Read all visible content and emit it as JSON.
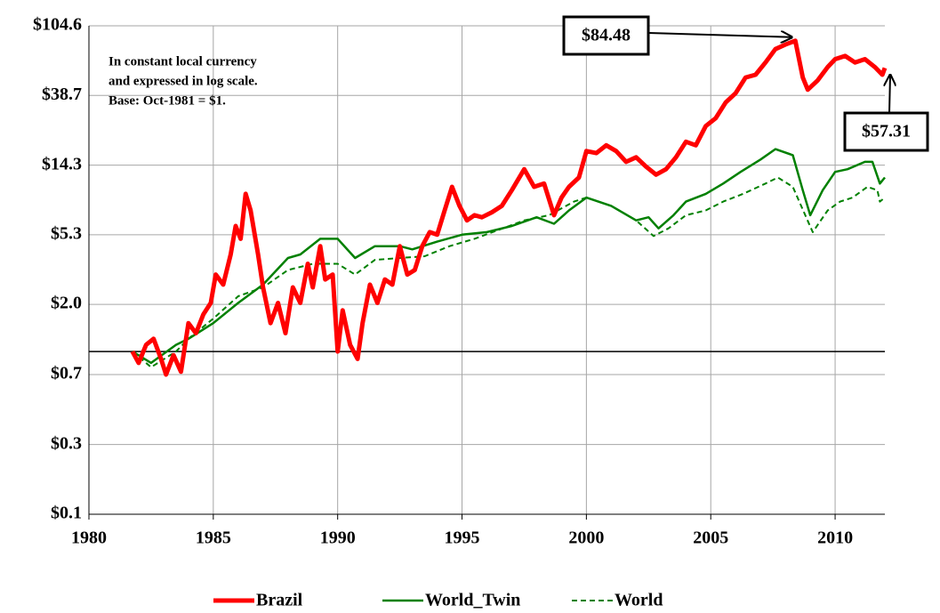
{
  "chart_data": {
    "type": "line",
    "note": [
      "In constant local currency",
      "and expressed in log scale.",
      "Base: Oct-1981 = $1."
    ],
    "log_scale": true,
    "grid": true,
    "legend": "bottom",
    "baseline": 1,
    "xlim": [
      1980,
      2012
    ],
    "xticks": [
      1980,
      1985,
      1990,
      1995,
      2000,
      2005,
      2010
    ],
    "ylim": [
      0.098,
      104.6
    ],
    "yticks": [
      {
        "value": 0.098,
        "label": "$0.1"
      },
      {
        "value": 0.265,
        "label": "$0.3"
      },
      {
        "value": 0.72,
        "label": "$0.7"
      },
      {
        "value": 1.96,
        "label": "$2.0"
      },
      {
        "value": 5.3,
        "label": "$5.3"
      },
      {
        "value": 14.3,
        "label": "$14.3"
      },
      {
        "value": 38.7,
        "label": "$38.7"
      },
      {
        "value": 104.6,
        "label": "$104.6"
      }
    ],
    "annotations": [
      "$84.48",
      "$57.31"
    ],
    "series": [
      {
        "name": "Brazil",
        "color": "#ff0000",
        "style": "solid",
        "width": 5,
        "x": [
          1981.75,
          1982.0,
          1982.3,
          1982.6,
          1982.9,
          1983.1,
          1983.4,
          1983.7,
          1984.0,
          1984.3,
          1984.6,
          1984.9,
          1985.1,
          1985.4,
          1985.7,
          1985.9,
          1986.1,
          1986.3,
          1986.5,
          1986.8,
          1987.0,
          1987.3,
          1987.6,
          1987.9,
          1988.2,
          1988.5,
          1988.8,
          1989.0,
          1989.3,
          1989.5,
          1989.8,
          1990.0,
          1990.2,
          1990.5,
          1990.8,
          1991.0,
          1991.3,
          1991.6,
          1991.9,
          1992.2,
          1992.5,
          1992.8,
          1993.1,
          1993.4,
          1993.7,
          1994.0,
          1994.3,
          1994.6,
          1994.9,
          1995.2,
          1995.5,
          1995.8,
          1996.2,
          1996.6,
          1997.0,
          1997.5,
          1997.9,
          1998.3,
          1998.7,
          1999.0,
          1999.3,
          1999.7,
          2000.0,
          2000.4,
          2000.8,
          2001.2,
          2001.6,
          2002.0,
          2002.4,
          2002.8,
          2003.2,
          2003.6,
          2004.0,
          2004.4,
          2004.8,
          2005.2,
          2005.6,
          2006.0,
          2006.4,
          2006.8,
          2007.2,
          2007.6,
          2008.0,
          2008.4,
          2008.7,
          2008.9,
          2009.3,
          2009.7,
          2010.0,
          2010.4,
          2010.8,
          2011.2,
          2011.6,
          2011.9,
          2012.0
        ],
        "values": [
          1.0,
          0.85,
          1.1,
          1.2,
          0.9,
          0.72,
          0.95,
          0.75,
          1.5,
          1.3,
          1.7,
          2.0,
          3.0,
          2.6,
          4.0,
          6.0,
          5.0,
          9.5,
          7.5,
          4.0,
          2.5,
          1.5,
          2.0,
          1.3,
          2.5,
          2.0,
          3.5,
          2.5,
          4.5,
          2.8,
          3.0,
          1.0,
          1.8,
          1.1,
          0.9,
          1.5,
          2.6,
          2.0,
          2.8,
          2.6,
          4.5,
          3.0,
          3.2,
          4.5,
          5.5,
          5.3,
          7.5,
          10.5,
          8.0,
          6.5,
          7.0,
          6.8,
          7.3,
          8.0,
          10.0,
          13.5,
          10.5,
          11.0,
          7.0,
          9.0,
          10.5,
          12.0,
          17.5,
          17.0,
          19.0,
          17.5,
          15.0,
          16.0,
          14.0,
          12.5,
          13.5,
          16.0,
          20.0,
          19.0,
          25.0,
          28.0,
          35.0,
          40.0,
          50.0,
          52.0,
          62.0,
          75.0,
          80.0,
          84.48,
          50.0,
          42.0,
          48.0,
          58.0,
          65.0,
          68.0,
          62.0,
          65.0,
          58.0,
          52.0,
          57.31
        ]
      },
      {
        "name": "World_Twin",
        "color": "#008000",
        "style": "solid",
        "width": 2.5,
        "x": [
          1981.75,
          1982.5,
          1983.5,
          1984.0,
          1985.0,
          1986.0,
          1987.0,
          1988.0,
          1988.5,
          1989.3,
          1990.0,
          1990.7,
          1991.5,
          1992.5,
          1993.0,
          1994.0,
          1995.0,
          1996.0,
          1997.0,
          1998.0,
          1998.7,
          1999.3,
          2000.0,
          2001.0,
          2002.0,
          2002.5,
          2002.9,
          2003.5,
          2004.0,
          2004.8,
          2005.5,
          2006.2,
          2007.0,
          2007.6,
          2008.3,
          2008.7,
          2009.0,
          2009.5,
          2010.0,
          2010.5,
          2011.2,
          2011.5,
          2011.8,
          2012.0
        ],
        "values": [
          1.0,
          0.85,
          1.1,
          1.2,
          1.5,
          2.0,
          2.6,
          3.8,
          4.0,
          5.0,
          5.0,
          3.8,
          4.5,
          4.5,
          4.3,
          4.8,
          5.3,
          5.5,
          6.0,
          6.8,
          6.2,
          7.5,
          9.0,
          8.0,
          6.5,
          6.8,
          5.8,
          7.0,
          8.5,
          9.5,
          11.0,
          13.0,
          15.5,
          18.0,
          16.5,
          10.0,
          7.0,
          10.0,
          13.0,
          13.5,
          15.0,
          15.0,
          11.0,
          12.0
        ]
      },
      {
        "name": "World",
        "color": "#008000",
        "style": "dashed",
        "width": 2,
        "x": [
          1981.75,
          1982.5,
          1983.5,
          1984.0,
          1985.0,
          1986.0,
          1987.0,
          1988.0,
          1989.0,
          1990.0,
          1990.7,
          1991.5,
          1992.5,
          1993.5,
          1994.5,
          1995.5,
          1996.5,
          1997.5,
          1998.5,
          1999.5,
          2000.0,
          2001.0,
          2002.0,
          2002.7,
          2003.3,
          2004.0,
          2004.8,
          2005.5,
          2006.3,
          2007.2,
          2007.7,
          2008.3,
          2008.8,
          2009.1,
          2009.7,
          2010.2,
          2010.7,
          2011.3,
          2011.7,
          2011.8,
          2012.0
        ],
        "values": [
          1.0,
          0.8,
          1.0,
          1.2,
          1.6,
          2.2,
          2.5,
          3.2,
          3.5,
          3.5,
          3.0,
          3.7,
          3.8,
          3.9,
          4.5,
          5.0,
          5.7,
          6.5,
          7.0,
          8.5,
          9.0,
          8.0,
          6.5,
          5.2,
          5.8,
          7.0,
          7.5,
          8.5,
          9.5,
          11.0,
          12.0,
          10.5,
          7.0,
          5.5,
          7.5,
          8.5,
          9.0,
          10.5,
          10.0,
          8.5,
          9.0
        ]
      }
    ]
  }
}
